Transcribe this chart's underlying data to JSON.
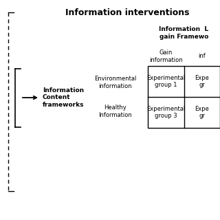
{
  "title": "Information interventions",
  "left_box_label": "Information\nContent\nframeworks",
  "mid_label_env": "Environmental\ninformation",
  "mid_label_health": "Healthy\nInformation",
  "table_header_bold": "Information  L\ngain Framewo",
  "col_header_left": "Gain\ninformation",
  "col_header_right": "inf",
  "cell_texts": [
    [
      "Experimental\ngroup 1",
      "Expe\ngr"
    ],
    [
      "Experimental\ngroup 3",
      "Expe\ngr"
    ]
  ],
  "bg_color": "#ffffff",
  "text_color": "#000000",
  "line_color": "#000000",
  "dashed_color": "#000000"
}
